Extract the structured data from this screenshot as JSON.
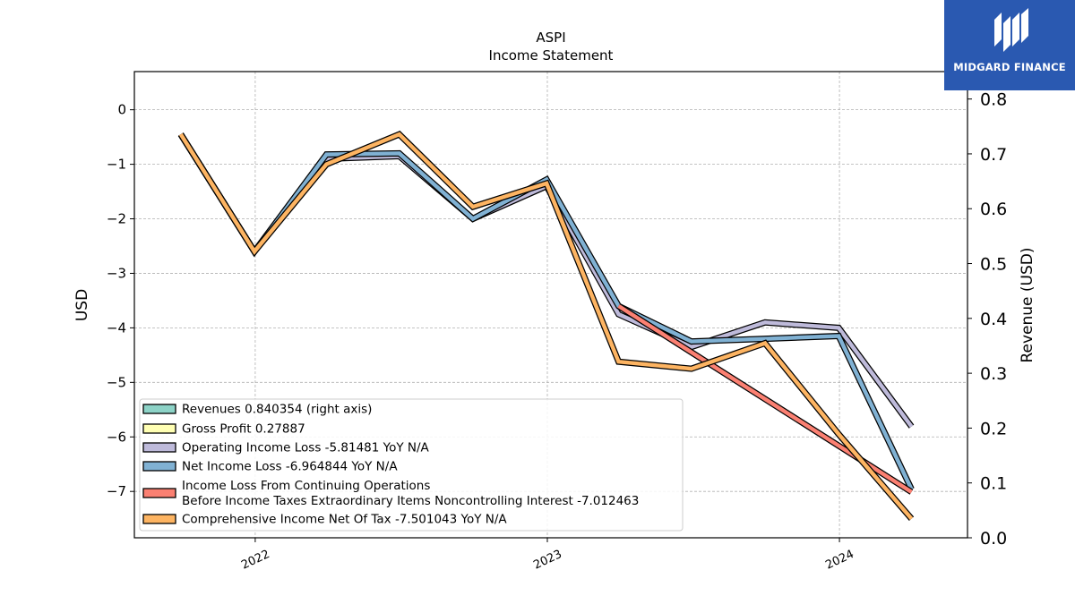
{
  "brand": {
    "name": "MIDGARD FINANCE",
    "color": "#2a59b1",
    "icon": "midgard-logo-icon"
  },
  "chart_data": {
    "type": "line",
    "title": "ASPI",
    "subtitle": "Income Statement",
    "ylabel": "USD",
    "ylabel_right": "Revenue (USD)",
    "ylim": [
      -7.85,
      0.7
    ],
    "ylim_right": [
      0.0,
      0.85
    ],
    "yticks": [
      0,
      -1,
      -2,
      -3,
      -4,
      -5,
      -6,
      -7
    ],
    "yticks_right": [
      0.0,
      0.1,
      0.2,
      0.3,
      0.4,
      0.5,
      0.6,
      0.7,
      0.8
    ],
    "xlim": [
      "2021-08-03",
      "2024-06-09"
    ],
    "xticks": [
      "2022",
      "2023",
      "2024"
    ],
    "grid": true,
    "legend_position": "lower-left",
    "legend": [
      "Revenues  0.840354 (right axis)",
      "Gross Profit  0.27887",
      "Operating Income Loss  -5.81481 YoY N/A",
      "Net Income Loss  -6.964844 YoY N/A",
      "Income Loss From Continuing Operations",
      "Before Income Taxes Extraordinary Items Noncontrolling Interest  -7.012463",
      "Comprehensive Income Net Of Tax  -7.501043 YoY N/A"
    ],
    "series": [
      {
        "name": "Revenues",
        "color": "#8dd3c7",
        "axis": "right",
        "x": [],
        "values": []
      },
      {
        "name": "Gross Profit",
        "color": "#ffffb3",
        "axis": "left",
        "x": [],
        "values": []
      },
      {
        "name": "Operating Income Loss",
        "color": "#bebada",
        "axis": "left",
        "x": [
          "2021-09-30",
          "2021-12-31",
          "2022-03-31",
          "2022-06-30",
          "2022-09-30",
          "2022-12-31",
          "2023-03-31",
          "2023-06-30",
          "2023-09-30",
          "2023-12-31",
          "2024-03-31"
        ],
        "values": [
          -0.45,
          -2.6,
          -0.9,
          -0.85,
          -2.0,
          -1.4,
          -3.75,
          -4.35,
          -3.9,
          -4.0,
          -5.81
        ]
      },
      {
        "name": "Net Income Loss",
        "color": "#80b1d3",
        "axis": "left",
        "x": [
          "2021-09-30",
          "2021-12-31",
          "2022-03-31",
          "2022-06-30",
          "2022-09-30",
          "2022-12-31",
          "2023-03-31",
          "2023-06-30",
          "2023-09-30",
          "2023-12-31",
          "2024-03-31"
        ],
        "values": [
          -0.45,
          -2.6,
          -0.82,
          -0.8,
          -2.0,
          -1.28,
          -3.6,
          -4.25,
          -4.2,
          -4.15,
          -6.96
        ]
      },
      {
        "name": "Income Loss From Continuing Operations Before Income Taxes Extraordinary Items Noncontrolling Interest",
        "color": "#fb8072",
        "axis": "left",
        "x": [
          "2023-03-31",
          "2024-03-31"
        ],
        "values": [
          -3.6,
          -7.01
        ]
      },
      {
        "name": "Comprehensive Income Net Of Tax",
        "color": "#fdb462",
        "axis": "left",
        "x": [
          "2021-09-30",
          "2021-12-31",
          "2022-03-31",
          "2022-06-30",
          "2022-09-30",
          "2022-12-31",
          "2023-03-31",
          "2023-06-30",
          "2023-09-30",
          "2023-12-31",
          "2024-03-31"
        ],
        "values": [
          -0.45,
          -2.6,
          -1.0,
          -0.45,
          -1.78,
          -1.35,
          -4.62,
          -4.75,
          -4.28,
          -5.95,
          -7.5
        ]
      }
    ]
  }
}
